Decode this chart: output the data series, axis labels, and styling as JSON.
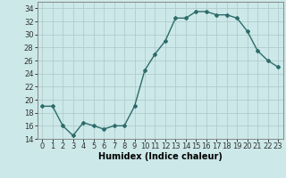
{
  "title": "",
  "xlabel": "Humidex (Indice chaleur)",
  "ylabel": "",
  "x": [
    0,
    1,
    2,
    3,
    4,
    5,
    6,
    7,
    8,
    9,
    10,
    11,
    12,
    13,
    14,
    15,
    16,
    17,
    18,
    19,
    20,
    21,
    22,
    23
  ],
  "y": [
    19,
    19,
    16,
    14.5,
    16.5,
    16,
    15.5,
    16,
    16,
    19,
    24.5,
    27,
    29,
    32.5,
    32.5,
    33.5,
    33.5,
    33,
    33,
    32.5,
    30.5,
    27.5,
    26,
    25
  ],
  "line_color": "#2e6b6b",
  "marker": "D",
  "marker_size": 2.0,
  "bg_color": "#cce8e8",
  "grid_color": "#b0cccc",
  "ylim": [
    14,
    35
  ],
  "xlim": [
    -0.5,
    23.5
  ],
  "yticks": [
    14,
    16,
    18,
    20,
    22,
    24,
    26,
    28,
    30,
    32,
    34
  ],
  "xtick_labels": [
    "0",
    "1",
    "2",
    "3",
    "4",
    "5",
    "6",
    "7",
    "8",
    "9",
    "10",
    "11",
    "12",
    "13",
    "14",
    "15",
    "16",
    "17",
    "18",
    "19",
    "20",
    "21",
    "22",
    "23"
  ],
  "linewidth": 1.0,
  "xlabel_fontsize": 7,
  "tick_fontsize": 6
}
